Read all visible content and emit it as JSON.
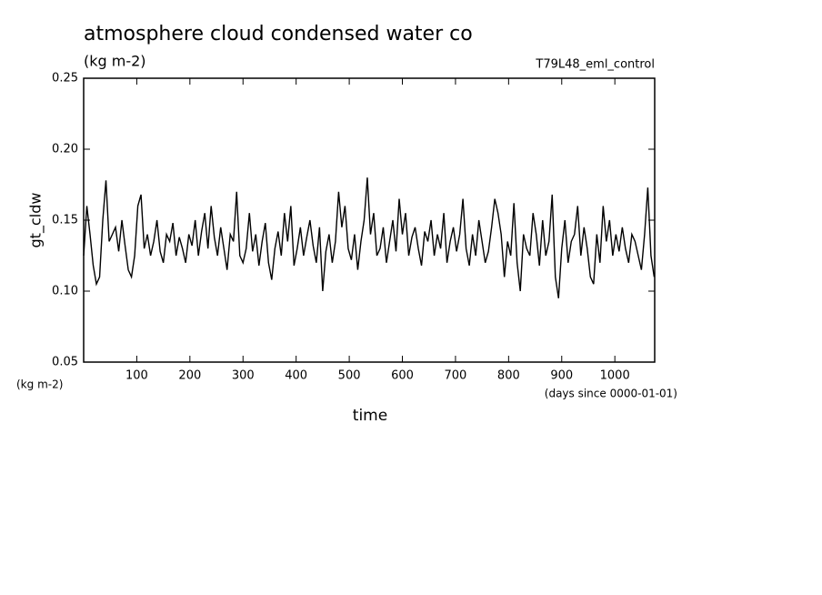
{
  "chart_data": {
    "type": "line",
    "title": "atmosphere cloud condensed water co",
    "subtitle": "(kg m-2)",
    "run_label": "T79L48_eml_control",
    "y_label": "gt_cldw",
    "y_unit": "(kg m-2)",
    "x_label": "time",
    "x_unit": "(days since 0000-01-01)",
    "xlim": [
      0,
      1075
    ],
    "xticks": [
      100,
      200,
      300,
      400,
      500,
      600,
      700,
      800,
      900,
      1000
    ],
    "ylim": [
      0.05,
      0.25
    ],
    "yticks": [
      0.05,
      {
        "value": 0.1,
        "label": "0.10"
      },
      0.15,
      {
        "value": 0.2,
        "label": "0.20"
      },
      0.25
    ],
    "x": [
      0,
      6,
      12,
      18,
      24,
      30,
      36,
      42,
      48,
      54,
      60,
      66,
      72,
      78,
      84,
      90,
      96,
      102,
      108,
      114,
      120,
      126,
      132,
      138,
      144,
      150,
      156,
      162,
      168,
      174,
      180,
      186,
      192,
      198,
      204,
      210,
      216,
      222,
      228,
      234,
      240,
      246,
      252,
      258,
      264,
      270,
      276,
      282,
      288,
      294,
      300,
      306,
      312,
      318,
      324,
      330,
      336,
      342,
      348,
      354,
      360,
      366,
      372,
      378,
      384,
      390,
      396,
      402,
      408,
      414,
      420,
      426,
      432,
      438,
      444,
      450,
      456,
      462,
      468,
      474,
      480,
      486,
      492,
      498,
      504,
      510,
      516,
      522,
      528,
      534,
      540,
      546,
      552,
      558,
      564,
      570,
      576,
      582,
      588,
      594,
      600,
      606,
      612,
      618,
      624,
      630,
      636,
      642,
      648,
      654,
      660,
      666,
      672,
      678,
      684,
      690,
      696,
      702,
      708,
      714,
      720,
      726,
      732,
      738,
      744,
      750,
      756,
      762,
      768,
      774,
      780,
      786,
      792,
      798,
      804,
      810,
      816,
      822,
      828,
      834,
      840,
      846,
      852,
      858,
      864,
      870,
      876,
      882,
      888,
      894,
      900,
      906,
      912,
      918,
      924,
      930,
      936,
      942,
      948,
      954,
      960,
      966,
      972,
      978,
      984,
      990,
      996,
      1002,
      1008,
      1014,
      1020,
      1026,
      1032,
      1038,
      1044,
      1050,
      1056,
      1062,
      1068,
      1074
    ],
    "series": [
      {
        "name": "gt_cldw",
        "color": "#000000",
        "values": [
          0.125,
          0.16,
          0.14,
          0.118,
          0.105,
          0.11,
          0.15,
          0.178,
          0.135,
          0.14,
          0.145,
          0.128,
          0.15,
          0.132,
          0.115,
          0.11,
          0.125,
          0.16,
          0.168,
          0.13,
          0.14,
          0.125,
          0.135,
          0.15,
          0.128,
          0.12,
          0.14,
          0.135,
          0.148,
          0.125,
          0.138,
          0.13,
          0.12,
          0.14,
          0.132,
          0.15,
          0.125,
          0.142,
          0.155,
          0.13,
          0.16,
          0.138,
          0.125,
          0.145,
          0.13,
          0.115,
          0.14,
          0.135,
          0.17,
          0.125,
          0.12,
          0.13,
          0.155,
          0.128,
          0.14,
          0.118,
          0.135,
          0.148,
          0.12,
          0.108,
          0.13,
          0.142,
          0.125,
          0.155,
          0.135,
          0.16,
          0.118,
          0.13,
          0.145,
          0.125,
          0.138,
          0.15,
          0.132,
          0.12,
          0.145,
          0.1,
          0.128,
          0.14,
          0.12,
          0.135,
          0.17,
          0.145,
          0.16,
          0.13,
          0.122,
          0.14,
          0.115,
          0.135,
          0.15,
          0.18,
          0.14,
          0.155,
          0.125,
          0.13,
          0.145,
          0.12,
          0.135,
          0.15,
          0.128,
          0.165,
          0.14,
          0.155,
          0.125,
          0.138,
          0.145,
          0.13,
          0.118,
          0.142,
          0.135,
          0.15,
          0.125,
          0.14,
          0.13,
          0.155,
          0.12,
          0.135,
          0.145,
          0.128,
          0.14,
          0.165,
          0.13,
          0.118,
          0.14,
          0.125,
          0.15,
          0.135,
          0.12,
          0.128,
          0.145,
          0.165,
          0.155,
          0.14,
          0.11,
          0.135,
          0.125,
          0.162,
          0.12,
          0.1,
          0.14,
          0.13,
          0.125,
          0.155,
          0.14,
          0.118,
          0.15,
          0.125,
          0.135,
          0.168,
          0.11,
          0.095,
          0.13,
          0.15,
          0.12,
          0.135,
          0.14,
          0.16,
          0.125,
          0.145,
          0.13,
          0.11,
          0.105,
          0.14,
          0.12,
          0.16,
          0.135,
          0.15,
          0.125,
          0.14,
          0.128,
          0.145,
          0.13,
          0.12,
          0.14,
          0.135,
          0.125,
          0.115,
          0.14,
          0.173,
          0.125,
          0.11
        ]
      }
    ]
  }
}
